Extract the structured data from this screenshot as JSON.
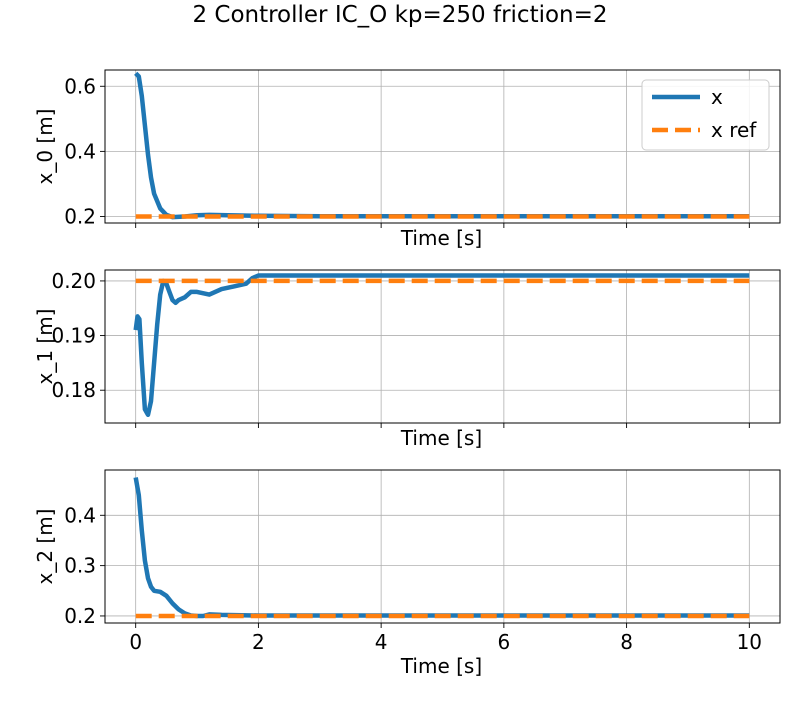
{
  "figure": {
    "title": "2 Controller IC_O kp=250 friction=2"
  },
  "legend": {
    "placement": "upper-right",
    "items": [
      {
        "label": "x"
      },
      {
        "label": "x ref"
      }
    ]
  },
  "colors": {
    "x": "#1f77b4",
    "x_ref": "#ff7f0e",
    "grid": "#b0b0b0"
  },
  "chart_data": [
    {
      "type": "line",
      "ylabel": "x_0 [m]",
      "xlabel": "Time [s]",
      "xlim": [
        -0.5,
        10.5
      ],
      "ylim": [
        0.18,
        0.65
      ],
      "xticks": [
        0,
        2,
        4,
        6,
        8,
        10
      ],
      "yticks": [
        0.2,
        0.4,
        0.6
      ],
      "ytick_labels": [
        "0.2",
        "0.4",
        "0.6"
      ],
      "show_xtick_labels": false,
      "grid": true,
      "series": [
        {
          "name": "x",
          "x": [
            0,
            0.05,
            0.1,
            0.15,
            0.2,
            0.25,
            0.3,
            0.4,
            0.5,
            0.6,
            0.8,
            1.0,
            1.2,
            1.5,
            2.0,
            3.0,
            5.0,
            7.0,
            10.0
          ],
          "y": [
            0.64,
            0.63,
            0.57,
            0.48,
            0.39,
            0.32,
            0.27,
            0.225,
            0.205,
            0.198,
            0.2,
            0.204,
            0.205,
            0.204,
            0.202,
            0.201,
            0.201,
            0.201,
            0.201
          ]
        },
        {
          "name": "x ref",
          "x": [
            0,
            10
          ],
          "y": [
            0.2,
            0.2
          ]
        }
      ]
    },
    {
      "type": "line",
      "ylabel": "x_1 [m]",
      "xlabel": "Time [s]",
      "xlim": [
        -0.5,
        10.5
      ],
      "ylim": [
        0.174,
        0.202
      ],
      "xticks": [
        0,
        2,
        4,
        6,
        8,
        10
      ],
      "yticks": [
        0.18,
        0.19,
        0.2
      ],
      "ytick_labels": [
        "0.18",
        "0.19",
        "0.20"
      ],
      "show_xtick_labels": false,
      "grid": true,
      "series": [
        {
          "name": "x",
          "x": [
            0,
            0.03,
            0.06,
            0.1,
            0.15,
            0.2,
            0.25,
            0.3,
            0.35,
            0.4,
            0.45,
            0.5,
            0.55,
            0.6,
            0.65,
            0.7,
            0.8,
            0.9,
            1.0,
            1.2,
            1.4,
            1.6,
            1.8,
            1.9,
            2.0,
            3.0,
            5.0,
            7.0,
            10.0
          ],
          "y": [
            0.191,
            0.1935,
            0.193,
            0.185,
            0.1765,
            0.1755,
            0.178,
            0.185,
            0.192,
            0.1975,
            0.2,
            0.1995,
            0.198,
            0.1965,
            0.196,
            0.1965,
            0.197,
            0.198,
            0.198,
            0.1975,
            0.1985,
            0.199,
            0.1995,
            0.2005,
            0.201,
            0.201,
            0.201,
            0.201,
            0.201
          ]
        },
        {
          "name": "x ref",
          "x": [
            0,
            10
          ],
          "y": [
            0.2,
            0.2
          ]
        }
      ]
    },
    {
      "type": "line",
      "ylabel": "x_2 [m]",
      "xlabel": "Time [s]",
      "xlim": [
        -0.5,
        10.5
      ],
      "ylim": [
        0.186,
        0.49
      ],
      "xticks": [
        0,
        2,
        4,
        6,
        8,
        10
      ],
      "xtick_labels": [
        "0",
        "2",
        "4",
        "6",
        "8",
        "10"
      ],
      "yticks": [
        0.2,
        0.3,
        0.4
      ],
      "ytick_labels": [
        "0.2",
        "0.3",
        "0.4"
      ],
      "show_xtick_labels": true,
      "grid": true,
      "series": [
        {
          "name": "x",
          "x": [
            0,
            0.05,
            0.1,
            0.15,
            0.2,
            0.25,
            0.3,
            0.4,
            0.5,
            0.6,
            0.7,
            0.8,
            0.9,
            1.0,
            1.1,
            1.2,
            1.4,
            2.0,
            3.0,
            5.0,
            7.0,
            10.0
          ],
          "y": [
            0.475,
            0.44,
            0.37,
            0.31,
            0.275,
            0.258,
            0.25,
            0.248,
            0.24,
            0.225,
            0.213,
            0.205,
            0.201,
            0.2,
            0.2,
            0.203,
            0.202,
            0.201,
            0.201,
            0.201,
            0.201,
            0.201
          ]
        },
        {
          "name": "x ref",
          "x": [
            0,
            10
          ],
          "y": [
            0.2,
            0.2
          ]
        }
      ]
    }
  ]
}
